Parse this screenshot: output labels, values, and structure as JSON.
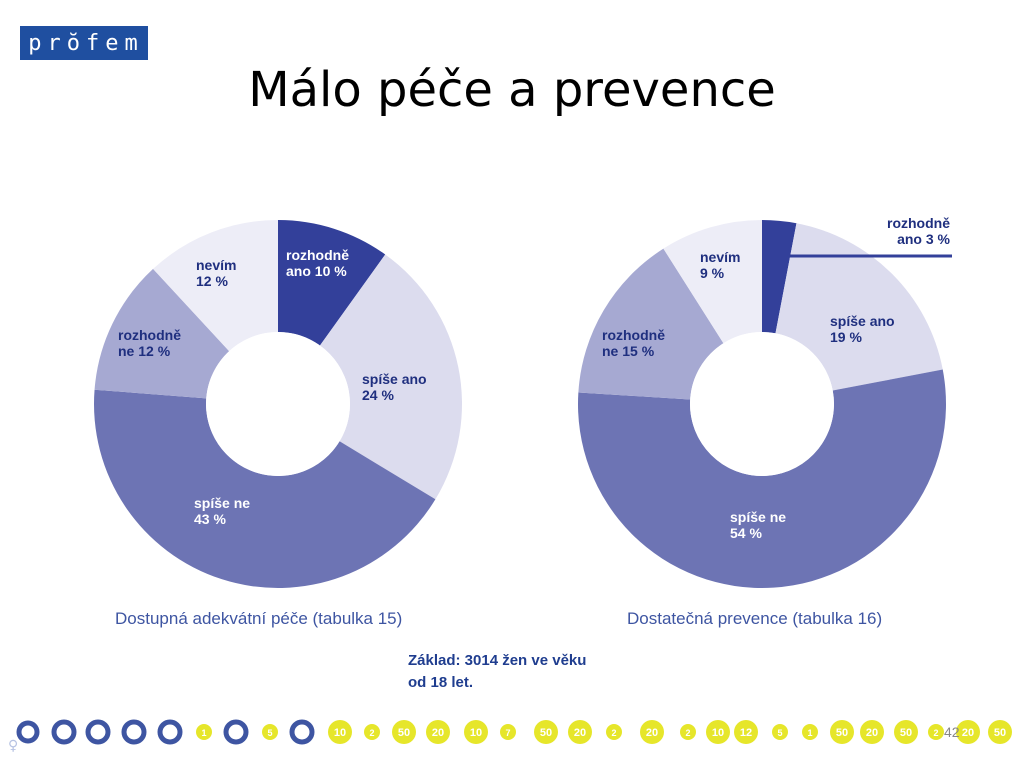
{
  "logo_text": "prŏfem",
  "title": "Málo péče a prevence",
  "chart_data": [
    {
      "type": "pie",
      "variant": "donut",
      "caption": "Dostupná adekvátní péče (tabulka 15)",
      "slices": [
        {
          "label_line1": "rozhodně",
          "label_line2": "ano 10 %",
          "value": 10,
          "color": "#33409a",
          "text_color": "#ffffff"
        },
        {
          "label_line1": "spíše ano",
          "label_line2": "24 %",
          "value": 24,
          "color": "#dcdcee",
          "text_color": "#1f2f7f"
        },
        {
          "label_line1": "spíše ne",
          "label_line2": "43 %",
          "value": 43,
          "color": "#6d74b4",
          "text_color": "#ffffff"
        },
        {
          "label_line1": "rozhodně",
          "label_line2": "ne 12 %",
          "value": 12,
          "color": "#a6a9d2",
          "text_color": "#1f2f7f"
        },
        {
          "label_line1": "nevím",
          "label_line2": "12 %",
          "value": 12,
          "color": "#ededf7",
          "text_color": "#1f2f7f"
        }
      ]
    },
    {
      "type": "pie",
      "variant": "donut",
      "caption": "Dostatečná prevence (tabulka 16)",
      "slices": [
        {
          "label_line1": "rozhodně",
          "label_line2": "ano 3 %",
          "value": 3,
          "color": "#33409a",
          "text_color": "#1f2f7f",
          "callout": true
        },
        {
          "label_line1": "spíše ano",
          "label_line2": "19 %",
          "value": 19,
          "color": "#dcdcee",
          "text_color": "#1f2f7f"
        },
        {
          "label_line1": "spíše ne",
          "label_line2": "54 %",
          "value": 54,
          "color": "#6d74b4",
          "text_color": "#ffffff"
        },
        {
          "label_line1": "rozhodně",
          "label_line2": "ne 15 %",
          "value": 15,
          "color": "#a6a9d2",
          "text_color": "#1f2f7f"
        },
        {
          "label_line1": "nevím",
          "label_line2": "9 %",
          "value": 9,
          "color": "#ededf7",
          "text_color": "#1f2f7f"
        }
      ]
    }
  ],
  "note": {
    "line1": "Základ: 3014 žen ve věku",
    "line2": "od 18 let."
  },
  "footer_numbers": [
    "1",
    "5",
    "10",
    "2",
    "50",
    "20",
    "10",
    "7",
    "50",
    "20",
    "2",
    "20",
    "2",
    "10",
    "12",
    "5",
    "1",
    "50",
    "20",
    "50",
    "2",
    "20",
    "50"
  ],
  "page_number": "42",
  "colors": {
    "accent_blue": "#1f4fa0",
    "footer_yellow": "#e6e62a",
    "footer_ring": "#3e55a2"
  }
}
